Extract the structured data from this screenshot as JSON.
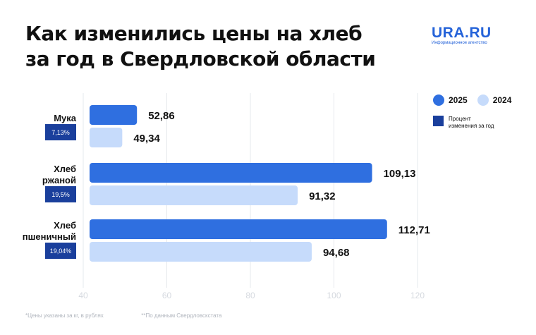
{
  "header": {
    "title_line1": "Как изменились цены на хлеб",
    "title_line2": "за год в Свердловской области"
  },
  "logo": {
    "name": "URA.RU",
    "tagline": "Информационное агентство"
  },
  "legend": {
    "items": [
      {
        "label": "2025",
        "color": "#2f6fe0"
      },
      {
        "label": "2024",
        "color": "#c6dbfb"
      }
    ],
    "percent_label_line1": "Процент",
    "percent_label_line2": "изменения за год",
    "percent_color": "#1a3f9c"
  },
  "footnotes": {
    "note1": "*Цены указаны за кг, в рублях",
    "note2": "**По данным Свердловскстата"
  },
  "chart_data": {
    "type": "bar",
    "orientation": "horizontal",
    "title": "Как изменились цены на хлеб за год в Свердловской области",
    "categories": [
      {
        "label_lines": [
          "Мука"
        ],
        "percent": "7,13%"
      },
      {
        "label_lines": [
          "Хлеб",
          "ржаной"
        ],
        "percent": "19,5%"
      },
      {
        "label_lines": [
          "Хлеб",
          "пшеничный"
        ],
        "percent": "19,04%"
      }
    ],
    "series": [
      {
        "name": "2025",
        "values": [
          52.86,
          109.13,
          112.71
        ],
        "labels": [
          "52,86",
          "109,13",
          "112,71"
        ],
        "color": "#2f6fe0"
      },
      {
        "name": "2024",
        "values": [
          49.34,
          91.32,
          94.68
        ],
        "labels": [
          "49,34",
          "91,32",
          "94,68"
        ],
        "color": "#c6dbfb"
      }
    ],
    "xlim": [
      40,
      120
    ],
    "xticks": [
      40,
      60,
      80,
      100,
      120
    ],
    "grid": true,
    "legend_position": "right"
  }
}
